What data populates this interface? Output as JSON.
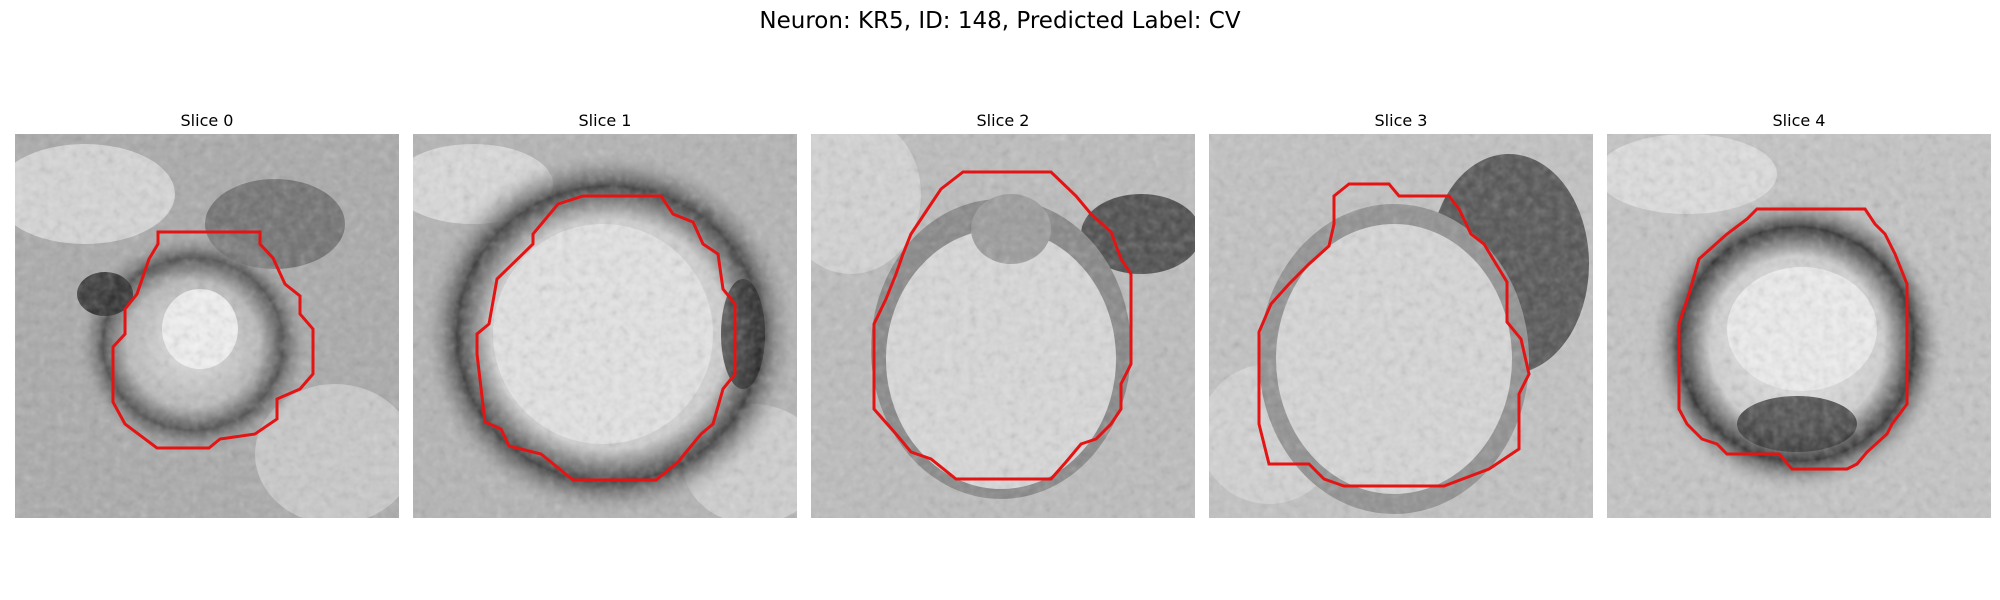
{
  "figure": {
    "title": "Neuron: KR5, ID: 148, Predicted Label: CV"
  },
  "panels": [
    {
      "title": "Slice 0"
    },
    {
      "title": "Slice 1"
    },
    {
      "title": "Slice 2"
    },
    {
      "title": "Slice 3"
    },
    {
      "title": "Slice 4"
    }
  ],
  "style": {
    "contour_color": "#e41414"
  }
}
